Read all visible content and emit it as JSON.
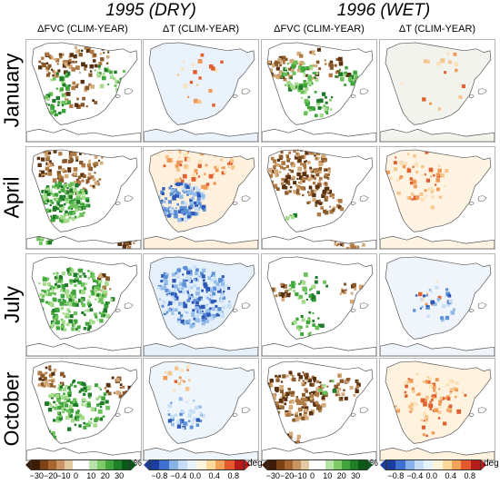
{
  "years": [
    {
      "label": "1995 (DRY)"
    },
    {
      "label": "1996 (WET)"
    }
  ],
  "columns": [
    {
      "label": "ΔFVC  (CLIM-YEAR)",
      "var": "fvc"
    },
    {
      "label": "ΔT  (CLIM-YEAR)",
      "var": "t"
    },
    {
      "label": "ΔFVC  (CLIM-YEAR)",
      "var": "fvc"
    },
    {
      "label": "ΔT  (CLIM-YEAR)",
      "var": "t"
    }
  ],
  "rows": [
    {
      "label": "January"
    },
    {
      "label": "April"
    },
    {
      "label": "July"
    },
    {
      "label": "October"
    }
  ],
  "colorbars": {
    "fvc": {
      "unit": "%",
      "ticks": [
        "−30",
        "−20",
        "−10",
        "0",
        "10",
        "20",
        "30"
      ],
      "colors": [
        "#3d1c06",
        "#7a4216",
        "#a8662e",
        "#c89461",
        "#e3c9a2",
        "#ffffff",
        "#ffffff",
        "#b9e3a6",
        "#7fcb68",
        "#3fa63b",
        "#1d7f26",
        "#0b5a17"
      ]
    },
    "t": {
      "unit": "deg",
      "ticks": [
        "−0.8",
        "−0.4",
        "0.0",
        "0.4",
        "0.8"
      ],
      "colors": [
        "#1b3d9c",
        "#3f6fd0",
        "#86b2e8",
        "#c4dcf4",
        "#e8f2fb",
        "#fff5dc",
        "#fbd79a",
        "#f2a35a",
        "#e45a2e",
        "#b71c1c"
      ]
    }
  },
  "colors": {
    "fvc_negative": "#8b5a2b",
    "fvc_positive": "#4caf3a",
    "t_negative": "#5b8fd6",
    "t_positive": "#f3b56a",
    "coast": "#555555"
  }
}
